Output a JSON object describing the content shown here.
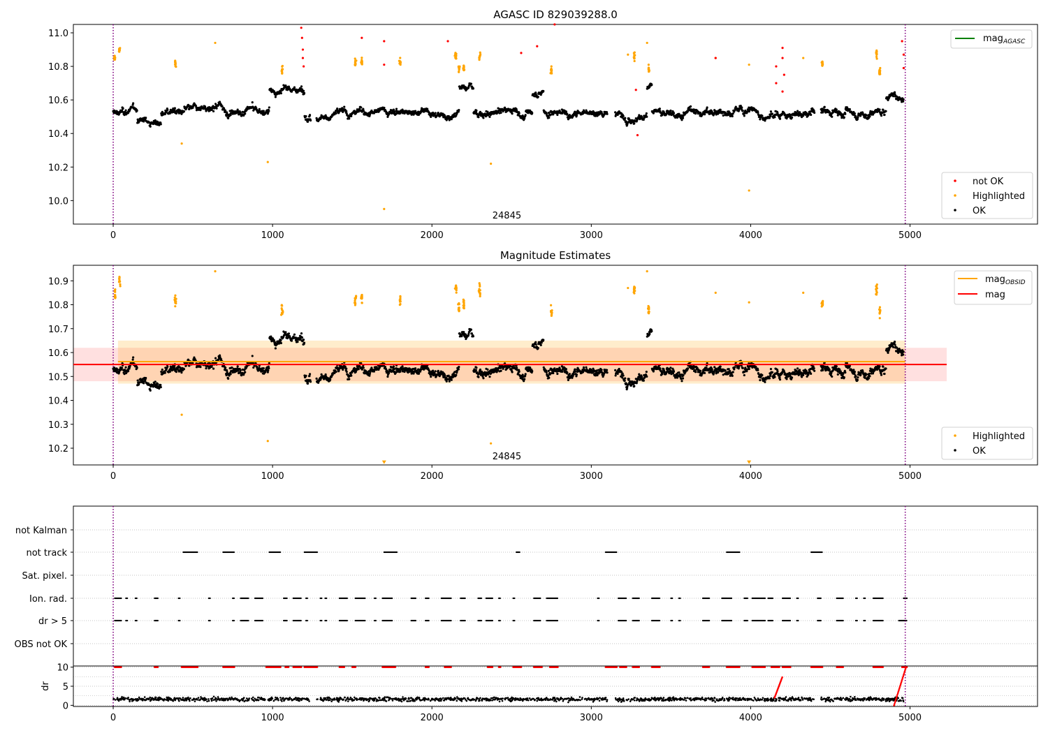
{
  "chart_data": [
    {
      "type": "scatter",
      "title": "AGASC ID 829039288.0",
      "xlim": [
        -250,
        5800
      ],
      "ylim": [
        9.86,
        11.05
      ],
      "xticks": [
        "0",
        "1000",
        "2000",
        "3000",
        "4000",
        "5000"
      ],
      "yticks": [
        "10.0",
        "10.2",
        "10.4",
        "10.6",
        "10.8",
        "11.0"
      ],
      "vlines": [
        0,
        4970
      ],
      "annotation": "24845",
      "annotation_x": 2470,
      "legend_top": [
        {
          "label": "mag",
          "sub": "AGASC",
          "color": "#008000",
          "kind": "line"
        }
      ],
      "legend_bottom": [
        {
          "label": "not OK",
          "color": "#ff0000",
          "kind": "dot"
        },
        {
          "label": "Highlighted",
          "color": "#ffa500",
          "kind": "dot"
        },
        {
          "label": "OK",
          "color": "#000000",
          "kind": "dot"
        }
      ],
      "series": [
        {
          "name": "OK",
          "color": "#000000",
          "n": 2500,
          "base": 10.54,
          "spread": 0.045
        },
        {
          "name": "Highlighted",
          "color": "#ffa500",
          "clusters": [
            [
              10,
              10.85
            ],
            [
              40,
              10.9
            ],
            [
              390,
              10.82
            ],
            [
              1060,
              10.78
            ],
            [
              1520,
              10.82
            ],
            [
              1560,
              10.83
            ],
            [
              1800,
              10.82
            ],
            [
              2150,
              10.87
            ],
            [
              2170,
              10.79
            ],
            [
              2200,
              10.8
            ],
            [
              2300,
              10.86
            ],
            [
              2750,
              10.77
            ],
            [
              3270,
              10.86
            ],
            [
              3360,
              10.78
            ],
            [
              4450,
              10.81
            ],
            [
              4790,
              10.87
            ],
            [
              4810,
              10.77
            ]
          ],
          "outliers": [
            [
              430,
              10.34
            ],
            [
              640,
              10.94
            ],
            [
              970,
              10.23
            ],
            [
              1700,
              9.95
            ],
            [
              2370,
              10.22
            ],
            [
              3230,
              10.87
            ],
            [
              3350,
              10.94
            ],
            [
              3990,
              10.06
            ],
            [
              3990,
              10.81
            ],
            [
              3780,
              10.85
            ],
            [
              4330,
              10.85
            ]
          ]
        },
        {
          "name": "not OK",
          "color": "#ff0000",
          "points": [
            [
              1180,
              11.03
            ],
            [
              1185,
              10.97
            ],
            [
              1190,
              10.9
            ],
            [
              1190,
              10.85
            ],
            [
              1195,
              10.8
            ],
            [
              1560,
              10.97
            ],
            [
              1700,
              10.95
            ],
            [
              1700,
              10.81
            ],
            [
              2100,
              10.95
            ],
            [
              2560,
              10.88
            ],
            [
              2660,
              10.92
            ],
            [
              2770,
              11.05
            ],
            [
              3280,
              10.66
            ],
            [
              3290,
              10.39
            ],
            [
              3780,
              10.85
            ],
            [
              4160,
              10.8
            ],
            [
              4160,
              10.7
            ],
            [
              4200,
              10.91
            ],
            [
              4200,
              10.85
            ],
            [
              4210,
              10.75
            ],
            [
              4200,
              10.65
            ],
            [
              4950,
              10.95
            ],
            [
              4960,
              10.87
            ],
            [
              4960,
              10.79
            ]
          ]
        }
      ]
    },
    {
      "type": "scatter",
      "title": "Magnitude Estimates",
      "xlim": [
        -250,
        5800
      ],
      "ylim": [
        10.13,
        10.965
      ],
      "xticks": [
        "0",
        "1000",
        "2000",
        "3000",
        "4000",
        "5000"
      ],
      "yticks": [
        "10.2",
        "10.3",
        "10.4",
        "10.5",
        "10.6",
        "10.7",
        "10.8",
        "10.9"
      ],
      "vlines": [
        0,
        4970
      ],
      "annotation": "24845",
      "annotation_x": 2470,
      "hlines": [
        {
          "name": "mag_OBSID",
          "y": 10.562,
          "x": [
            30,
            4970
          ],
          "color": "#ffa500",
          "band": [
            10.47,
            10.65
          ]
        },
        {
          "name": "mag",
          "y": 10.55,
          "x": [
            -250,
            5230
          ],
          "color": "#ff0000",
          "band": [
            10.48,
            10.62
          ]
        }
      ],
      "legend_top": [
        {
          "label": "mag",
          "sub": "OBSID",
          "color": "#ffa500",
          "kind": "line"
        },
        {
          "label": "mag",
          "sub": "",
          "color": "#ff0000",
          "kind": "line"
        }
      ],
      "legend_bottom": [
        {
          "label": "Highlighted",
          "color": "#ffa500",
          "kind": "dot"
        },
        {
          "label": "OK",
          "color": "#000000",
          "kind": "dot"
        }
      ],
      "series": [
        {
          "name": "OK",
          "color": "#000000"
        },
        {
          "name": "Highlighted",
          "color": "#ffa500"
        }
      ],
      "offscale_markers": [
        [
          1700,
          10.14
        ],
        [
          3990,
          10.14
        ]
      ]
    },
    {
      "type": "scatter",
      "title": "",
      "xlim": [
        -250,
        5800
      ],
      "categories": [
        "not Kalman",
        "not track",
        "Sat. pixel.",
        "Ion. rad.",
        "dr > 5",
        "OBS not OK"
      ],
      "vlines": [
        0,
        4970
      ],
      "flag_segments": {
        "not track": [
          [
            440,
            530
          ],
          [
            690,
            760
          ],
          [
            980,
            1050
          ],
          [
            1200,
            1280
          ],
          [
            1700,
            1780
          ],
          [
            2530,
            2550
          ],
          [
            3090,
            3160
          ],
          [
            3850,
            3930
          ],
          [
            4380,
            4450
          ]
        ],
        "Ion. rad.": [
          [
            10,
            50
          ],
          [
            80,
            90
          ],
          [
            140,
            150
          ],
          [
            260,
            280
          ],
          [
            410,
            420
          ],
          [
            600,
            610
          ],
          [
            750,
            760
          ],
          [
            800,
            850
          ],
          [
            890,
            940
          ],
          [
            1070,
            1090
          ],
          [
            1130,
            1180
          ],
          [
            1210,
            1220
          ],
          [
            1300,
            1310
          ],
          [
            1330,
            1340
          ],
          [
            1420,
            1470
          ],
          [
            1520,
            1580
          ],
          [
            1640,
            1650
          ],
          [
            1690,
            1750
          ],
          [
            1870,
            1900
          ],
          [
            1960,
            1980
          ],
          [
            2060,
            2120
          ],
          [
            2180,
            2210
          ],
          [
            2290,
            2310
          ],
          [
            2340,
            2380
          ],
          [
            2420,
            2430
          ],
          [
            2510,
            2520
          ],
          [
            2640,
            2680
          ],
          [
            2720,
            2790
          ],
          [
            3040,
            3050
          ],
          [
            3170,
            3220
          ],
          [
            3260,
            3300
          ],
          [
            3380,
            3430
          ],
          [
            3500,
            3510
          ],
          [
            3550,
            3560
          ],
          [
            3700,
            3740
          ],
          [
            3820,
            3880
          ],
          [
            3960,
            3980
          ],
          [
            4010,
            4090
          ],
          [
            4110,
            4140
          ],
          [
            4200,
            4250
          ],
          [
            4290,
            4300
          ],
          [
            4420,
            4440
          ],
          [
            4540,
            4580
          ],
          [
            4660,
            4670
          ],
          [
            4710,
            4720
          ],
          [
            4770,
            4830
          ],
          [
            4960,
            4980
          ]
        ],
        "dr > 5": [
          [
            10,
            50
          ],
          [
            80,
            90
          ],
          [
            140,
            150
          ],
          [
            260,
            280
          ],
          [
            410,
            420
          ],
          [
            600,
            610
          ],
          [
            750,
            760
          ],
          [
            800,
            850
          ],
          [
            890,
            940
          ],
          [
            1070,
            1090
          ],
          [
            1130,
            1180
          ],
          [
            1210,
            1220
          ],
          [
            1300,
            1310
          ],
          [
            1330,
            1340
          ],
          [
            1420,
            1470
          ],
          [
            1520,
            1580
          ],
          [
            1640,
            1650
          ],
          [
            1690,
            1750
          ],
          [
            1870,
            1900
          ],
          [
            1960,
            1980
          ],
          [
            2060,
            2120
          ],
          [
            2180,
            2210
          ],
          [
            2290,
            2310
          ],
          [
            2340,
            2380
          ],
          [
            2420,
            2430
          ],
          [
            2510,
            2520
          ],
          [
            2640,
            2680
          ],
          [
            2720,
            2790
          ],
          [
            3040,
            3050
          ],
          [
            3170,
            3220
          ],
          [
            3260,
            3300
          ],
          [
            3380,
            3430
          ],
          [
            3500,
            3510
          ],
          [
            3550,
            3560
          ],
          [
            3700,
            3740
          ],
          [
            3820,
            3880
          ],
          [
            3960,
            3980
          ],
          [
            4010,
            4090
          ],
          [
            4110,
            4140
          ],
          [
            4200,
            4250
          ],
          [
            4290,
            4300
          ],
          [
            4420,
            4440
          ],
          [
            4540,
            4580
          ],
          [
            4660,
            4670
          ],
          [
            4710,
            4720
          ],
          [
            4770,
            4830
          ],
          [
            4930,
            4980
          ]
        ]
      }
    },
    {
      "type": "scatter",
      "title": "",
      "xlim": [
        -250,
        5800
      ],
      "ylim": [
        -0.3,
        10.3
      ],
      "ylabel": "dr",
      "xticks": [
        "0",
        "1000",
        "2000",
        "3000",
        "4000",
        "5000"
      ],
      "yticks": [
        "0",
        "5",
        "10"
      ],
      "vlines": [
        0,
        4970
      ],
      "series": [
        {
          "name": "OK",
          "color": "#000000"
        },
        {
          "name": "dr > 5 / not OK",
          "color": "#ff0000"
        }
      ],
      "red_segments_at_cap": [
        [
          10,
          50
        ],
        [
          260,
          280
        ],
        [
          430,
          530
        ],
        [
          690,
          760
        ],
        [
          960,
          1050
        ],
        [
          1080,
          1100
        ],
        [
          1130,
          1180
        ],
        [
          1200,
          1280
        ],
        [
          1420,
          1450
        ],
        [
          1500,
          1520
        ],
        [
          1690,
          1770
        ],
        [
          1960,
          1980
        ],
        [
          2080,
          2120
        ],
        [
          2350,
          2380
        ],
        [
          2420,
          2430
        ],
        [
          2510,
          2560
        ],
        [
          2640,
          2690
        ],
        [
          2740,
          2790
        ],
        [
          3090,
          3160
        ],
        [
          3180,
          3220
        ],
        [
          3260,
          3300
        ],
        [
          3380,
          3430
        ],
        [
          3700,
          3740
        ],
        [
          3850,
          3930
        ],
        [
          4010,
          4090
        ],
        [
          4130,
          4180
        ],
        [
          4200,
          4250
        ],
        [
          4380,
          4450
        ],
        [
          4540,
          4580
        ],
        [
          4770,
          4830
        ],
        [
          4950,
          4980
        ]
      ]
    }
  ]
}
